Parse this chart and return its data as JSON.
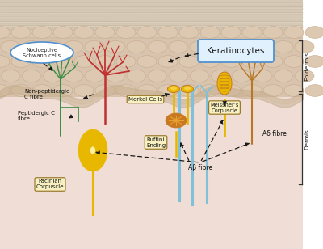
{
  "fig_bg": "#ffffff",
  "epidermis_label": "Epidermis",
  "dermis_label": "Dermis",
  "keratinocytes_label": "Keratinocytes",
  "nociceptive_label": "Nociceptive\nSchwann cells",
  "non_peptidergic_label": "Non-peptidergic\nC fibre",
  "peptidergic_label": "Peptidergic C\nfibre",
  "merkel_label": "Merkel Cells",
  "ruffini_label": "Ruffini\nEnding",
  "pacinian_label": "Pacinian\nCorpuscle",
  "meissner_label": "Meissner’s\nCorpuscle",
  "abeta_label": "Aβ fibre",
  "adelta_label": "Aδ fibre",
  "stratum_color": "#d5c8b5",
  "stratum_lines": "#c0b09a",
  "epidermis_cell_color": "#ddc8b2",
  "epidermis_cell_edge": "#c4a888",
  "epidermis_bg": "#d8c4ae",
  "dermis_bg": "#f0ddd5",
  "wave_color": "#c0a888",
  "green": "#3a8c42",
  "red": "#c03030",
  "yellow_gold": "#e8b800",
  "yellow_light": "#f5d040",
  "orange_dark": "#c87820",
  "orange_light": "#e8a030",
  "blue_stem": "#80c0d8",
  "blue_branch": "#60a8c8",
  "brown_nerve": "#b87828",
  "arrow_color": "#1a1a1a",
  "label_fc": "#f8f0c0",
  "label_ec": "#907020",
  "noci_fc": "#ffffff",
  "noci_ec": "#5090d0",
  "kerati_fc": "#e0f0fc",
  "kerati_ec": "#5090d0"
}
